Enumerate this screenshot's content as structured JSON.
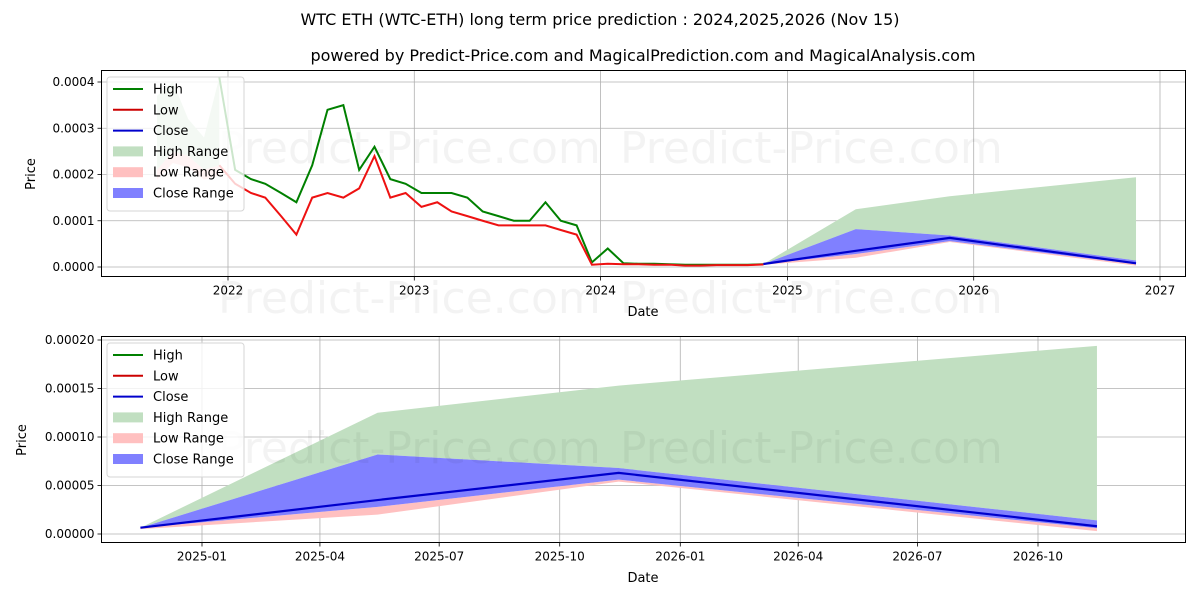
{
  "header": {
    "title": "WTC ETH (WTC-ETH) long term price prediction : 2024,2025,2026 (Nov 15)",
    "subtitle": "powered by Predict-Price.com and MagicalPrediction.com and MagicalAnalysis.com"
  },
  "watermark": "Predict-Price.com",
  "legend": {
    "items": [
      {
        "label": "High",
        "kind": "line",
        "color": "#008000"
      },
      {
        "label": "Low",
        "kind": "line",
        "color": "#cc0000"
      },
      {
        "label": "Close",
        "kind": "line",
        "color": "#0000cc"
      },
      {
        "label": "High Range",
        "kind": "patch",
        "color": "#c1dfc1"
      },
      {
        "label": "Low Range",
        "kind": "patch",
        "color": "#ffc0c0"
      },
      {
        "label": "Close Range",
        "kind": "patch",
        "color": "#8080ff"
      }
    ]
  },
  "colors": {
    "high": "#008000",
    "low": "#ee1111",
    "close": "#0000cc",
    "high_range": "#c1dfc1",
    "low_range": "#ffc0c0",
    "close_range": "#8080ff",
    "grid": "#b0b0b0"
  },
  "chart_data": [
    {
      "type": "line",
      "title": "WTC ETH (WTC-ETH) long term price prediction : 2024,2025,2026 (Nov 15)",
      "subtitle": "powered by Predict-Price.com and MagicalPrediction.com and MagicalAnalysis.com",
      "xlabel": "Date",
      "ylabel": "Price",
      "x_ticks": [
        "2022",
        "2023",
        "2024",
        "2025",
        "2026",
        "2027"
      ],
      "y_ticks": [
        "0.0000",
        "0.0001",
        "0.0002",
        "0.0003",
        "0.0004"
      ],
      "ylim": [
        -2e-05,
        0.00042
      ],
      "grid": true,
      "legend_position": "upper left",
      "historical": {
        "x": [
          "2021-08",
          "2021-09",
          "2021-10",
          "2021-11",
          "2021-12",
          "2022-01",
          "2022-02",
          "2022-03",
          "2022-04",
          "2022-05",
          "2022-06",
          "2022-07",
          "2022-08",
          "2022-09",
          "2022-10",
          "2022-11",
          "2022-12",
          "2023-01",
          "2023-02",
          "2023-03",
          "2023-04",
          "2023-05",
          "2023-06",
          "2023-07",
          "2023-08",
          "2023-09",
          "2023-10",
          "2023-11",
          "2023-12",
          "2024-01",
          "2024-02",
          "2024-03",
          "2024-04",
          "2024-05",
          "2024-06",
          "2024-07",
          "2024-08",
          "2024-09",
          "2024-10",
          "2024-11"
        ],
        "high": [
          0.00037,
          0.0004,
          0.00032,
          0.00028,
          0.00041,
          0.00021,
          0.00019,
          0.00018,
          0.00016,
          0.00014,
          0.00022,
          0.00034,
          0.00035,
          0.00021,
          0.00026,
          0.00019,
          0.00018,
          0.00016,
          0.00016,
          0.00016,
          0.00015,
          0.00012,
          0.00011,
          0.0001,
          0.0001,
          0.00014,
          0.0001,
          9e-05,
          1e-05,
          4e-05,
          8e-06,
          7e-06,
          7e-06,
          6e-06,
          5e-06,
          5e-06,
          5e-06,
          5e-06,
          5e-06,
          6e-06
        ],
        "low": [
          0.00021,
          0.00025,
          0.00024,
          0.00021,
          0.00022,
          0.00018,
          0.00016,
          0.00015,
          0.00011,
          7e-05,
          0.00015,
          0.00016,
          0.00015,
          0.00017,
          0.00024,
          0.00015,
          0.00016,
          0.00013,
          0.00014,
          0.00012,
          0.00011,
          0.0001,
          9e-05,
          9e-05,
          9e-05,
          9e-05,
          8e-05,
          7e-05,
          5e-06,
          7e-06,
          6e-06,
          6e-06,
          5e-06,
          5e-06,
          3e-06,
          3e-06,
          4e-06,
          4e-06,
          4e-06,
          5.5e-06
        ]
      },
      "forecast": {
        "x": [
          "2024-11-15",
          "2025-05-15",
          "2025-11-15",
          "2026-11-15"
        ],
        "close": [
          6.5e-06,
          3.5e-05,
          6.3e-05,
          8e-06
        ],
        "high_range_upper": [
          6.5e-06,
          0.000125,
          0.000153,
          0.000194
        ],
        "close_range_upper": [
          6.5e-06,
          8.2e-05,
          6.8e-05,
          1.4e-05
        ],
        "close_range_lower": [
          6.5e-06,
          2.8e-05,
          5.6e-05,
          6e-06
        ],
        "low_range_lower": [
          5e-06,
          2e-05,
          5.4e-05,
          3e-06
        ]
      }
    },
    {
      "type": "line",
      "xlabel": "Date",
      "ylabel": "Price",
      "x_ticks": [
        "2025-01",
        "2025-04",
        "2025-07",
        "2025-10",
        "2026-01",
        "2026-04",
        "2026-07",
        "2026-10"
      ],
      "y_ticks": [
        "0.00000",
        "0.00005",
        "0.00010",
        "0.00015",
        "0.00020"
      ],
      "ylim": [
        -8e-06,
        0.000202
      ],
      "grid": true,
      "legend_position": "upper left",
      "forecast": {
        "x": [
          "2024-11-15",
          "2025-05-15",
          "2025-11-15",
          "2026-11-15"
        ],
        "close": [
          6.5e-06,
          3.5e-05,
          6.3e-05,
          8e-06
        ],
        "high_range_upper": [
          6.5e-06,
          0.000125,
          0.000153,
          0.000194
        ],
        "close_range_upper": [
          6.5e-06,
          8.2e-05,
          6.8e-05,
          1.4e-05
        ],
        "close_range_lower": [
          6.5e-06,
          2.8e-05,
          5.6e-05,
          6e-06
        ],
        "low_range_lower": [
          5e-06,
          2e-05,
          5.4e-05,
          3e-06
        ]
      }
    }
  ]
}
